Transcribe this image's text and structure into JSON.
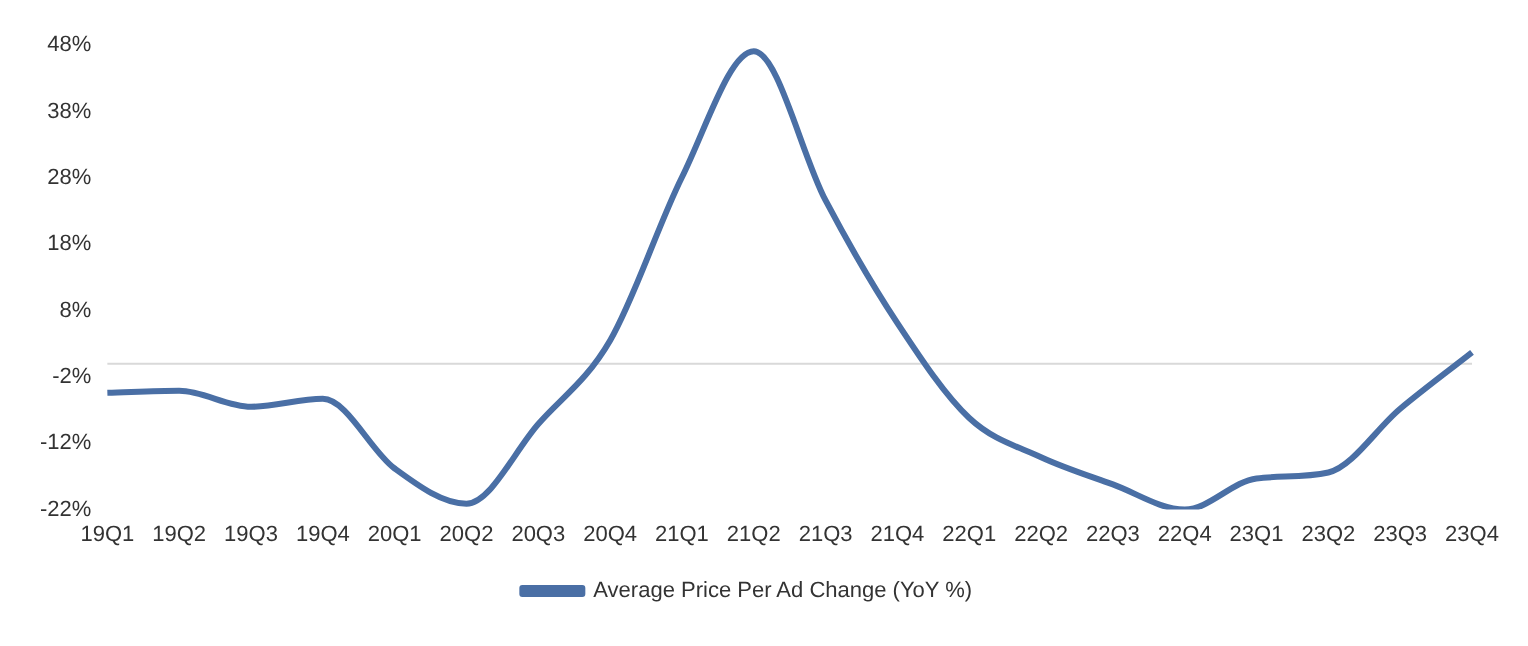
{
  "chart_data": {
    "type": "line",
    "categories": [
      "19Q1",
      "19Q2",
      "19Q3",
      "19Q4",
      "20Q1",
      "20Q2",
      "20Q3",
      "20Q4",
      "21Q1",
      "21Q2",
      "21Q3",
      "21Q4",
      "22Q1",
      "22Q2",
      "22Q3",
      "22Q4",
      "23Q1",
      "23Q2",
      "23Q3",
      "23Q4"
    ],
    "series": [
      {
        "name": "Average Price Per Ad Change (YoY %)",
        "color": "#4a6fa5",
        "values": [
          -4.4,
          -4.1,
          -6.5,
          -5.3,
          -15.8,
          -21.1,
          -9.1,
          3.5,
          28.1,
          47.1,
          24.6,
          6.1,
          -8.2,
          -14.1,
          -18.2,
          -22,
          -17.3,
          -16.4,
          -6.8,
          1.7
        ]
      }
    ],
    "ylim": [
      -22,
      48
    ],
    "yticks": [
      {
        "value": -22,
        "label": "-22%"
      },
      {
        "value": -12,
        "label": "-12%"
      },
      {
        "value": -2,
        "label": "-2%"
      },
      {
        "value": 8,
        "label": "8%"
      },
      {
        "value": 18,
        "label": "18%"
      },
      {
        "value": 28,
        "label": "28%"
      },
      {
        "value": 38,
        "label": "38%"
      },
      {
        "value": 48,
        "label": "48%"
      }
    ],
    "ref_lines": [
      {
        "axis": "y",
        "value": 0,
        "color": "#d9d9d9"
      }
    ],
    "grid": false,
    "legend": "bottom",
    "marker": "none",
    "line_style": "solid"
  }
}
